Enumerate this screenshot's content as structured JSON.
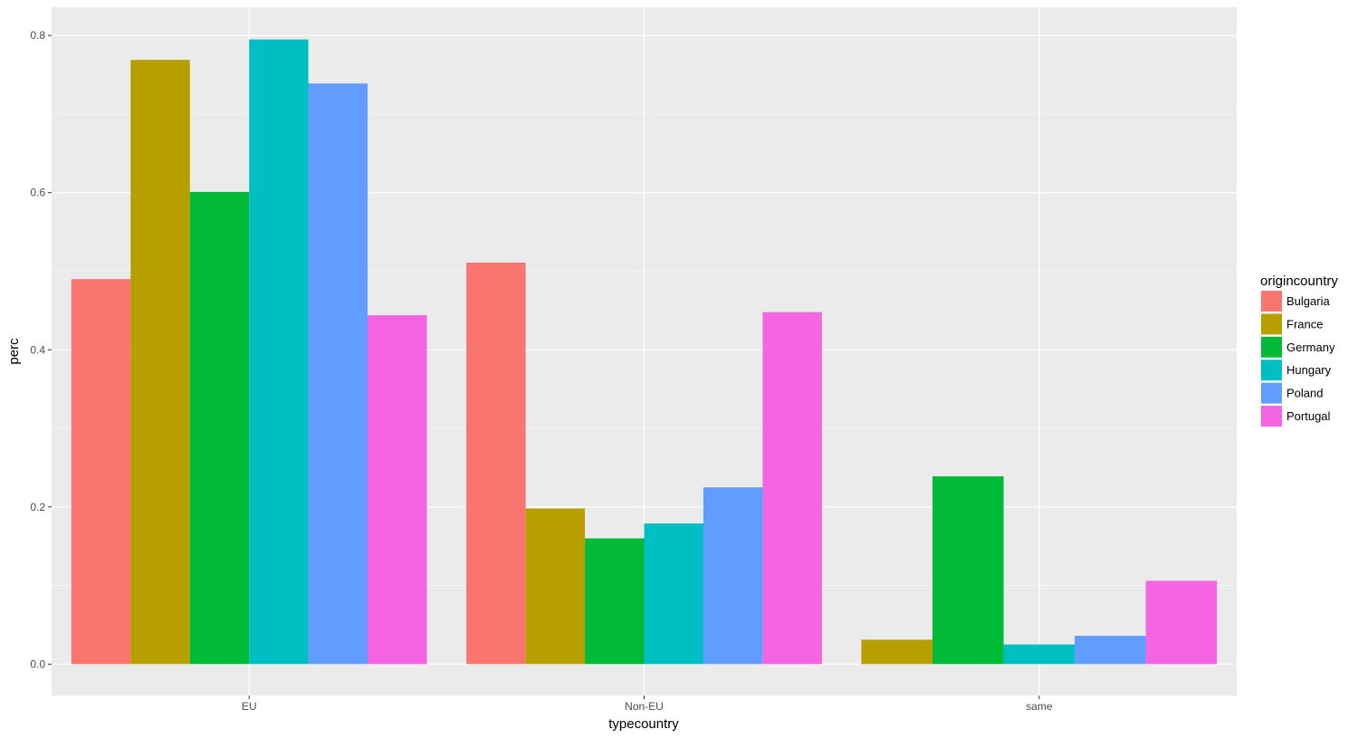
{
  "chart_data": {
    "type": "bar",
    "xlabel": "typecountry",
    "ylabel": "perc",
    "ylim": [
      -0.04,
      0.836
    ],
    "yticks": [
      "0.0",
      "0.2",
      "0.4",
      "0.6",
      "0.8"
    ],
    "grid": true,
    "legend_position": "right",
    "legend_title": "origincountry",
    "categories": [
      "EU",
      "Non-EU",
      "same"
    ],
    "series": [
      {
        "name": "Bulgaria",
        "color": "#F8766D",
        "values": [
          0.49,
          0.511,
          null
        ]
      },
      {
        "name": "France",
        "color": "#B79F00",
        "values": [
          0.769,
          0.198,
          0.031
        ]
      },
      {
        "name": "Germany",
        "color": "#00BA38",
        "values": [
          0.601,
          0.16,
          0.239
        ]
      },
      {
        "name": "Hungary",
        "color": "#00BFC4",
        "values": [
          0.795,
          0.179,
          0.025
        ]
      },
      {
        "name": "Poland",
        "color": "#619CFF",
        "values": [
          0.739,
          0.225,
          0.036
        ]
      },
      {
        "name": "Portugal",
        "color": "#F564E3",
        "values": [
          0.444,
          0.448,
          0.106
        ]
      }
    ]
  }
}
